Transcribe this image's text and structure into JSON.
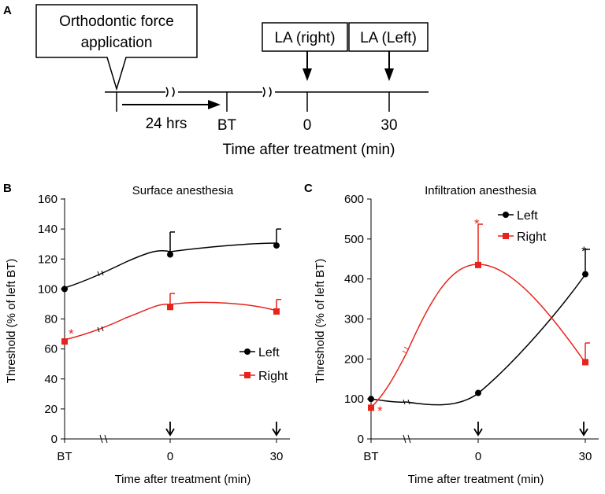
{
  "panel_a": {
    "letter": "A",
    "callout_line1": "Orthodontic force",
    "callout_line2": "application",
    "duration_label": "24 hrs",
    "la_right_label": "LA (right)",
    "la_left_label": "LA (Left)",
    "timeline_ticks": [
      "BT",
      "0",
      "30"
    ],
    "axis_label": "Time after treatment (min)"
  },
  "colors": {
    "left": "#000000",
    "right": "#e8231b"
  },
  "chart_data": [
    {
      "panel": "B",
      "type": "line",
      "title": "Surface anesthesia",
      "xlabel": "Time after treatment (min)",
      "ylabel": "Threshold (% of left BT)",
      "categories": [
        "BT",
        "0",
        "30"
      ],
      "ylim": [
        0,
        160
      ],
      "yticks": [
        "0",
        "20",
        "40",
        "60",
        "80",
        "100",
        "120",
        "140",
        "160"
      ],
      "legend_position": "right",
      "series": [
        {
          "name": "Left",
          "values": [
            100,
            123,
            129
          ],
          "errors": [
            0,
            15,
            11
          ],
          "marker": "circle"
        },
        {
          "name": "Right",
          "values": [
            65,
            88,
            85
          ],
          "errors": [
            0,
            9,
            8
          ],
          "marker": "square"
        }
      ],
      "annotations": [
        "*"
      ]
    },
    {
      "panel": "C",
      "type": "line",
      "title": "Infiltration anesthesia",
      "xlabel": "Time after treatment (min)",
      "ylabel": "Threshold (% of left BT)",
      "categories": [
        "BT",
        "0",
        "30"
      ],
      "ylim": [
        0,
        600
      ],
      "yticks": [
        "0",
        "100",
        "200",
        "300",
        "400",
        "500",
        "600"
      ],
      "legend_position": "top-right",
      "series": [
        {
          "name": "Left",
          "values": [
            100,
            115,
            412
          ],
          "errors": [
            0,
            0,
            62
          ],
          "marker": "circle"
        },
        {
          "name": "Right",
          "values": [
            78,
            435,
            192
          ],
          "errors": [
            0,
            102,
            48
          ],
          "marker": "square"
        }
      ],
      "annotations": [
        "*",
        "*",
        "*"
      ]
    }
  ]
}
